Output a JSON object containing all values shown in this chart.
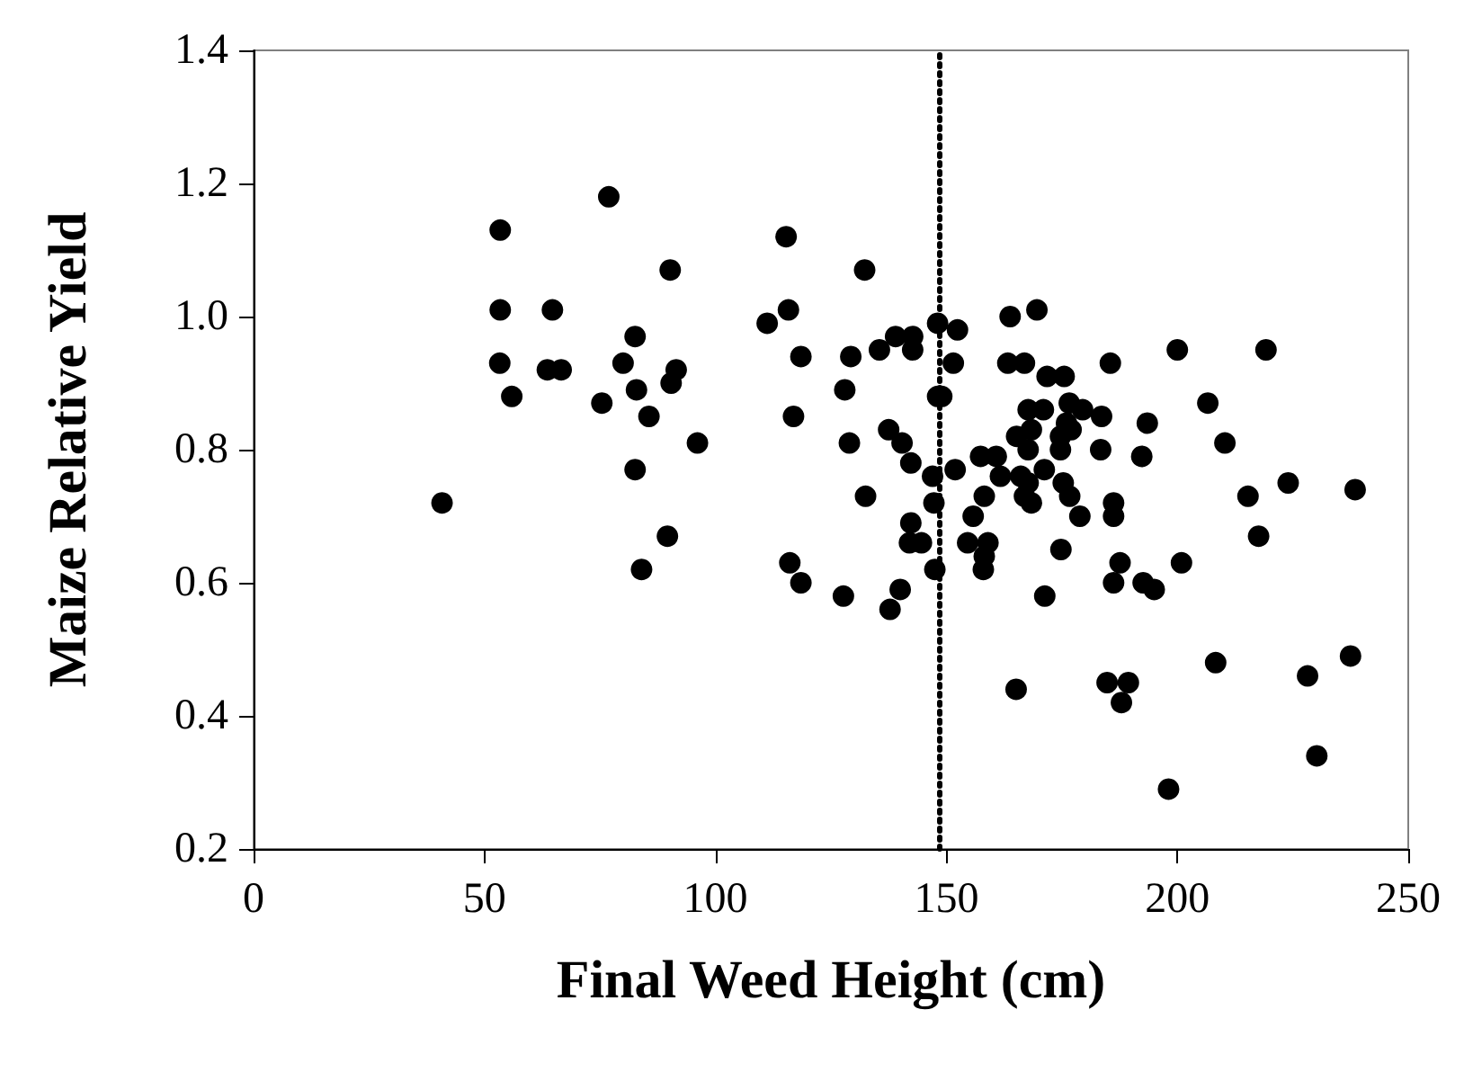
{
  "chart_data": {
    "type": "scatter",
    "xlabel": "Final Weed Height (cm)",
    "ylabel": "Maize Relative Yield",
    "xlim": [
      0,
      250
    ],
    "xticks": [
      0,
      50,
      100,
      150,
      200,
      250
    ],
    "ylim": [
      0.2,
      1.4
    ],
    "yticks": [
      {
        "value": 0.2,
        "label": "0.2"
      },
      {
        "value": 0.4,
        "label": "0.4"
      },
      {
        "value": 0.6,
        "label": "0.6"
      },
      {
        "value": 0.8,
        "label": "0.8"
      },
      {
        "value": 1.0,
        "label": "1.0"
      },
      {
        "value": 1.2,
        "label": "1.2"
      },
      {
        "value": 1.4,
        "label": "1.4"
      }
    ],
    "grid": false,
    "marker": "circle",
    "ref_lines": [
      {
        "axis": "x",
        "value": 148.5,
        "line_style": "dotted",
        "color": "#000000"
      }
    ],
    "series": [
      {
        "color": "#000000",
        "x": [
          40.8,
          53.4,
          76.9,
          53.4,
          64.7,
          53.3,
          63.6,
          66.6,
          55.9,
          82.6,
          80.0,
          91.5,
          90.4,
          90.2,
          75.4,
          82.9,
          85.6,
          96.1,
          82.6,
          89.6,
          84.0,
          115.3,
          115.8,
          111.2,
          118.5,
          116.9,
          116.1,
          118.5,
          127.7,
          132.3,
          129.3,
          128.0,
          129.0,
          132.5,
          135.5,
          139.0,
          142.7,
          142.7,
          148.1,
          152.4,
          151.5,
          148.1,
          149.0,
          137.5,
          140.4,
          142.3,
          147.0,
          151.9,
          147.3,
          142.3,
          142.0,
          144.6,
          147.5,
          140.0,
          137.8,
          163.8,
          169.6,
          163.3,
          166.9,
          171.8,
          175.5,
          185.5,
          200.0,
          219.2,
          206.6,
          210.3,
          193.5,
          183.6,
          183.4,
          192.3,
          224.0,
          238.5,
          215.3,
          217.6,
          200.9,
          187.6,
          186.2,
          192.6,
          195.0,
          171.3,
          174.8,
          186.2,
          186.2,
          178.9,
          175.3,
          176.7,
          167.7,
          171.0,
          176.6,
          179.5,
          176.0,
          177.0,
          165.2,
          168.4,
          167.7,
          174.7,
          174.7,
          157.4,
          160.8,
          161.7,
          166.1,
          167.7,
          171.2,
          166.9,
          168.4,
          158.2,
          155.8,
          154.6,
          159.0,
          158.2,
          158.0,
          208.3,
          228.2,
          237.5,
          165.1,
          184.8,
          189.4,
          187.9,
          198.1,
          230.2
        ],
        "values": [
          0.72,
          1.13,
          1.18,
          1.01,
          1.01,
          0.93,
          0.92,
          0.92,
          0.88,
          0.97,
          0.93,
          0.92,
          0.9,
          1.07,
          0.87,
          0.89,
          0.85,
          0.81,
          0.77,
          0.67,
          0.62,
          1.12,
          1.01,
          0.99,
          0.94,
          0.85,
          0.63,
          0.6,
          0.58,
          1.07,
          0.94,
          0.89,
          0.81,
          0.73,
          0.95,
          0.97,
          0.97,
          0.95,
          0.99,
          0.98,
          0.93,
          0.88,
          0.88,
          0.83,
          0.81,
          0.78,
          0.76,
          0.77,
          0.72,
          0.69,
          0.66,
          0.66,
          0.62,
          0.59,
          0.56,
          1.0,
          1.01,
          0.93,
          0.93,
          0.91,
          0.91,
          0.93,
          0.95,
          0.95,
          0.87,
          0.81,
          0.84,
          0.85,
          0.8,
          0.79,
          0.75,
          0.74,
          0.73,
          0.67,
          0.63,
          0.63,
          0.6,
          0.6,
          0.59,
          0.58,
          0.65,
          0.72,
          0.7,
          0.7,
          0.75,
          0.73,
          0.86,
          0.86,
          0.87,
          0.86,
          0.84,
          0.83,
          0.82,
          0.83,
          0.8,
          0.82,
          0.8,
          0.79,
          0.79,
          0.76,
          0.76,
          0.75,
          0.77,
          0.73,
          0.72,
          0.73,
          0.7,
          0.66,
          0.66,
          0.64,
          0.62,
          0.48,
          0.46,
          0.49,
          0.44,
          0.45,
          0.45,
          0.42,
          0.29,
          0.34
        ]
      }
    ]
  }
}
